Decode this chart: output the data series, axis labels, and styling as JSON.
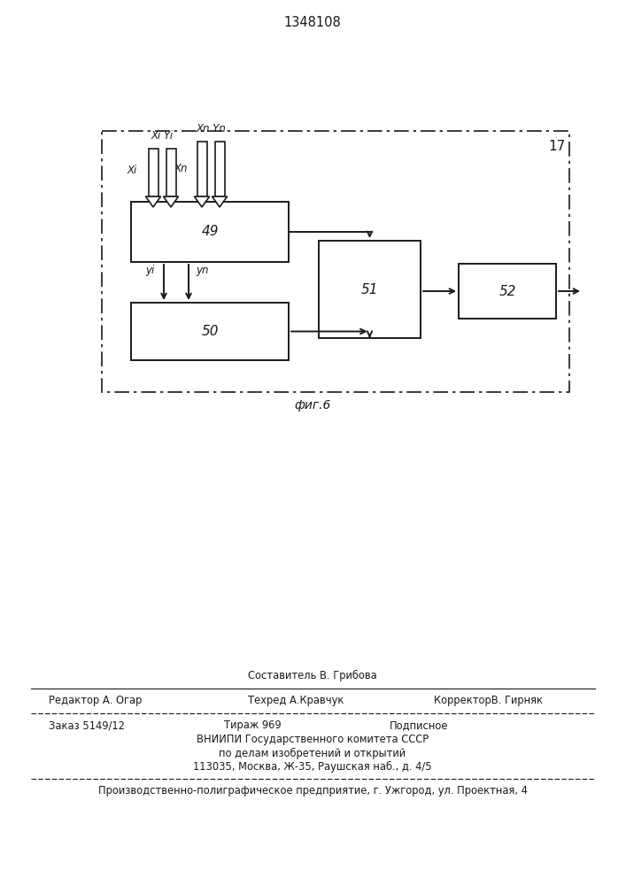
{
  "title": "1348108",
  "fig_label": "фиг.6",
  "block_17_label": "17",
  "block_49_label": "49",
  "block_50_label": "50",
  "block_51_label": "51",
  "block_52_label": "52",
  "label_Xi_Yi": "Xi Yi",
  "label_Xn_Yn": "Xn Yn",
  "label_Xi": "Xi",
  "label_Xn": "Xn",
  "label_yi": "yi",
  "label_yn": "yn",
  "bg_color": "#ffffff",
  "line_color": "#1a1a1a",
  "text_color": "#1a1a1a",
  "footer_sestavitel": "Составитель В. Грибова",
  "footer_redaktor": "Редактор А. Огар",
  "footer_tehred": "Техред А.Кравчук",
  "footer_korrektor": "КорректорВ. Гирняк",
  "footer_zakaz": "Заказ 5149/12",
  "footer_tirazh": "Тираж 969",
  "footer_podpisnoe": "Подписное",
  "footer_vniip1": "ВНИИПИ Государственного комитета СССР",
  "footer_vniip2": "по делам изобретений и открытий",
  "footer_vniip3": "113035, Москва, Ж-35, Раушская наб., д. 4/5",
  "footer_last": "Производственно-полиграфическое предприятие, г. Ужгород, ул. Проектная, 4"
}
